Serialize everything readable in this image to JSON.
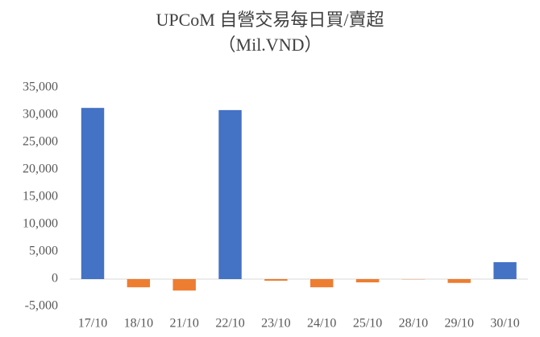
{
  "chart_data": {
    "type": "bar",
    "title": "UPCoM 自營交易每日買/賣超",
    "subtitle": "（Mil.VND）",
    "categories": [
      "17/10",
      "18/10",
      "21/10",
      "22/10",
      "23/10",
      "24/10",
      "25/10",
      "28/10",
      "29/10",
      "30/10"
    ],
    "values": [
      31300,
      -1500,
      -2100,
      30900,
      -300,
      -1500,
      -600,
      -50,
      -700,
      3100
    ],
    "color": "#4472c4",
    "negative_color": "#ed7d31",
    "ylim": [
      -5000,
      35000
    ],
    "yticks": [
      {
        "value": -5000,
        "label": "-5,000"
      },
      0,
      {
        "value": 5000,
        "label": "5,000"
      },
      {
        "value": 10000,
        "label": "10,000"
      },
      {
        "value": 15000,
        "label": "15,000"
      },
      {
        "value": 20000,
        "label": "20,000"
      },
      {
        "value": 25000,
        "label": "25,000"
      },
      {
        "value": 30000,
        "label": "30,000"
      },
      {
        "value": 35000,
        "label": "35,000"
      }
    ],
    "grid": false
  }
}
